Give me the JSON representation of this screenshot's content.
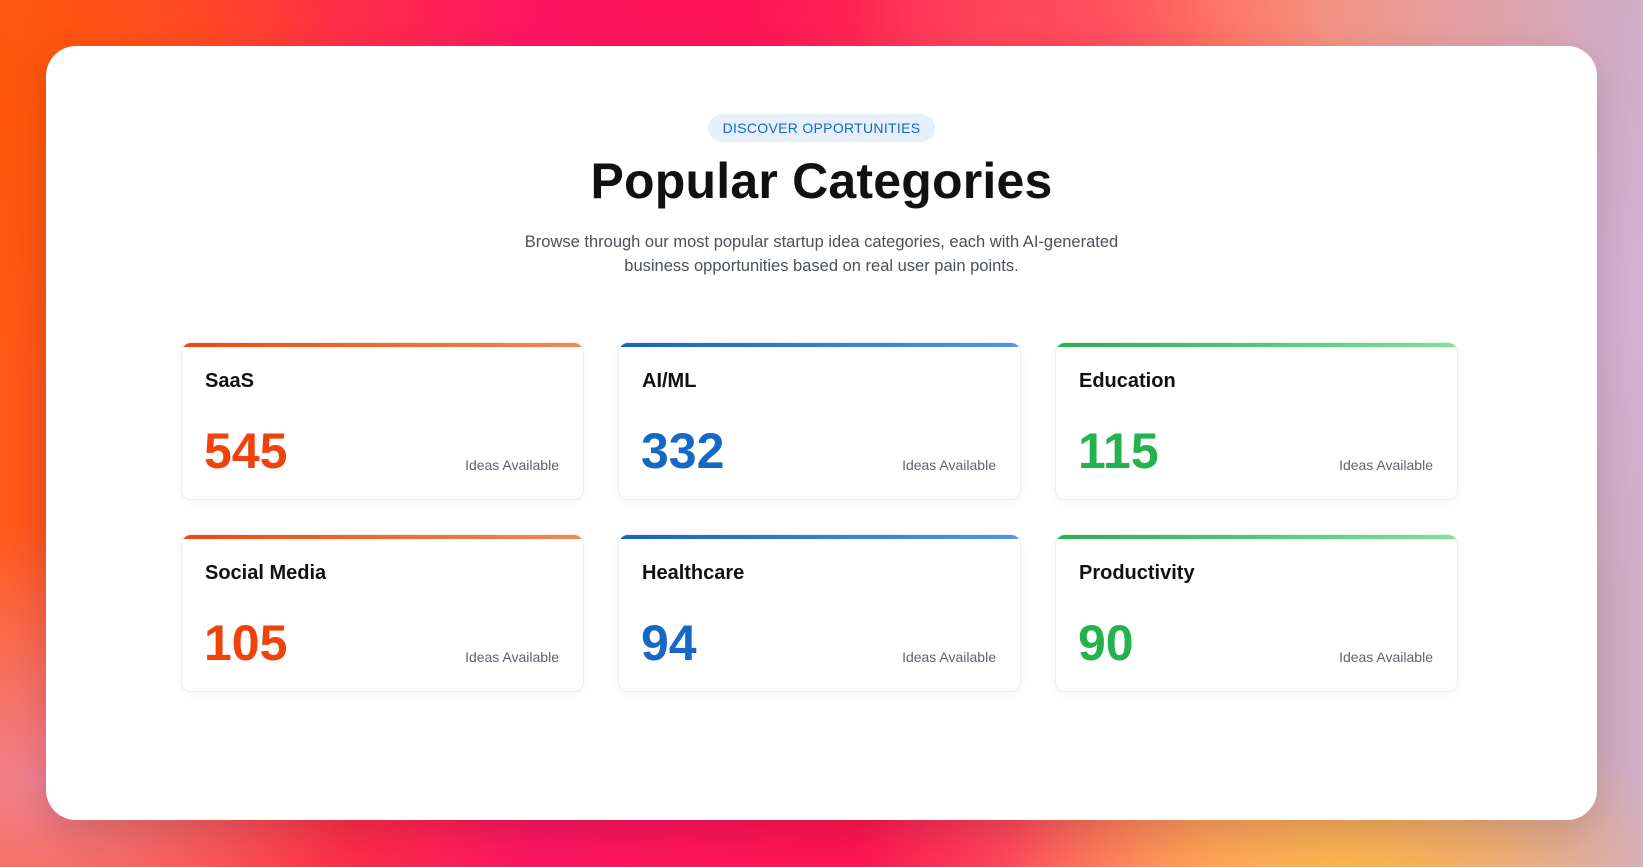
{
  "header": {
    "badge": "DISCOVER OPPORTUNITIES",
    "title": "Popular Categories",
    "subtitle": "Browse through our most popular startup idea categories, each with AI-generated business opportunities based on real user pain points."
  },
  "colors": {
    "orange": "#f0420a",
    "blue": "#1568c6",
    "green": "#22b34d",
    "badge_text": "#1668c4",
    "badge_bg": "#e5f0fb"
  },
  "categories": [
    {
      "name": "SaaS",
      "count": "545",
      "caption": "Ideas Available",
      "accent": "orange"
    },
    {
      "name": "AI/ML",
      "count": "332",
      "caption": "Ideas Available",
      "accent": "blue"
    },
    {
      "name": "Education",
      "count": "115",
      "caption": "Ideas Available",
      "accent": "green"
    },
    {
      "name": "Social Media",
      "count": "105",
      "caption": "Ideas Available",
      "accent": "orange"
    },
    {
      "name": "Healthcare",
      "count": "94",
      "caption": "Ideas Available",
      "accent": "blue"
    },
    {
      "name": "Productivity",
      "count": "90",
      "caption": "Ideas Available",
      "accent": "green"
    }
  ]
}
